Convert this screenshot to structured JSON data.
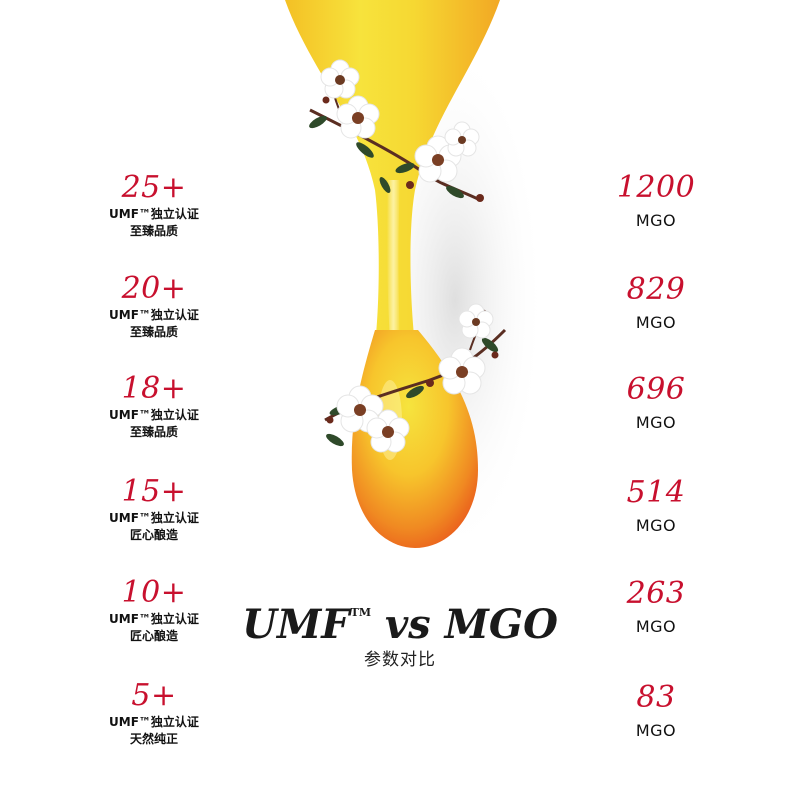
{
  "headline": {
    "umf": "UMF",
    "tm": "TM",
    "rest": " vs MGO"
  },
  "subtitle": "参数对比",
  "umf_grades": [
    {
      "grade": "25+",
      "line1": "UMF™独立认证",
      "line2": "至臻品质"
    },
    {
      "grade": "20+",
      "line1": "UMF™独立认证",
      "line2": "至臻品质"
    },
    {
      "grade": "18+",
      "line1": "UMF™独立认证",
      "line2": "至臻品质"
    },
    {
      "grade": "15+",
      "line1": "UMF™独立认证",
      "line2": "匠心酿造"
    },
    {
      "grade": "10+",
      "line1": "UMF™独立认证",
      "line2": "匠心酿造"
    },
    {
      "grade": "5+",
      "line1": "UMF™独立认证",
      "line2": "天然纯正"
    }
  ],
  "mgo_values": [
    {
      "value": "1200",
      "unit": "MGO"
    },
    {
      "value": "829",
      "unit": "MGO"
    },
    {
      "value": "696",
      "unit": "MGO"
    },
    {
      "value": "514",
      "unit": "MGO"
    },
    {
      "value": "263",
      "unit": "MGO"
    },
    {
      "value": "83",
      "unit": "MGO"
    }
  ],
  "colors": {
    "accent": "#c8102e",
    "text": "#111111",
    "honey_light": "#f6e23a",
    "honey_mid": "#f7b92a",
    "honey_deep": "#ee6a1e"
  },
  "icons": {
    "artwork": "honey-drip-icon",
    "flowers": "manuka-flower-icon"
  }
}
